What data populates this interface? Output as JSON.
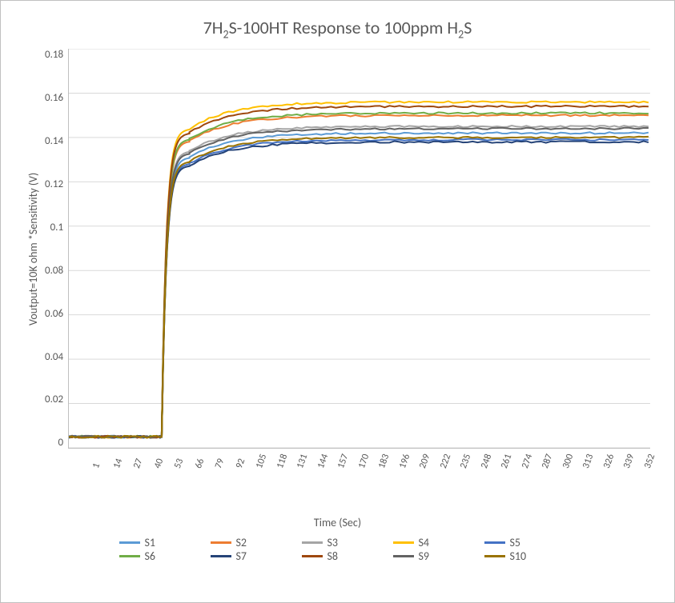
{
  "chart": {
    "type": "line",
    "title_html": "7H<sub>2</sub>S-100HT Response to 100ppm H<sub>2</sub>S",
    "title_color": "#595959",
    "title_fontsize": 22,
    "xlabel": "Time (Sec)",
    "ylabel": "Voutput=10K ohm *Sensitivity (V)",
    "label_fontsize": 14,
    "label_color": "#595959",
    "background_color": "#ffffff",
    "frame_border_color": "#c0c0c0",
    "grid_color": "#d9d9d9",
    "axis_color": "#bfbfbf",
    "tick_color": "#595959",
    "tick_fontsize": 13,
    "xtick_fontsize": 12,
    "xtick_rotation_deg": -70,
    "line_width": 2,
    "ylim": [
      0,
      0.18
    ],
    "yticks": [
      0,
      0.02,
      0.04,
      0.06,
      0.08,
      0.1,
      0.12,
      0.14,
      0.16,
      0.18
    ],
    "xlim": [
      1,
      358
    ],
    "xticks": [
      1,
      14,
      27,
      40,
      53,
      66,
      79,
      92,
      105,
      118,
      131,
      144,
      157,
      170,
      183,
      196,
      209,
      222,
      235,
      248,
      261,
      274,
      287,
      300,
      313,
      326,
      339,
      352
    ],
    "step_x_start": 58,
    "step_x_end": 75,
    "baseline": 0.005,
    "series": [
      {
        "name": "S1",
        "label": "S1",
        "color": "#5b9bd5",
        "plateau": 0.142
      },
      {
        "name": "S2",
        "label": "S2",
        "color": "#ed7d31",
        "plateau": 0.15
      },
      {
        "name": "S3",
        "label": "S3",
        "color": "#a5a5a5",
        "plateau": 0.145
      },
      {
        "name": "S4",
        "label": "S4",
        "color": "#ffc000",
        "plateau": 0.156
      },
      {
        "name": "S5",
        "label": "S5",
        "color": "#4472c4",
        "plateau": 0.139
      },
      {
        "name": "S6",
        "label": "S6",
        "color": "#70ad47",
        "plateau": 0.151
      },
      {
        "name": "S7",
        "label": "S7",
        "color": "#264478",
        "plateau": 0.138
      },
      {
        "name": "S8",
        "label": "S8",
        "color": "#9e480e",
        "plateau": 0.154
      },
      {
        "name": "S9",
        "label": "S9",
        "color": "#636363",
        "plateau": 0.144
      },
      {
        "name": "S10",
        "label": "S10",
        "color": "#997300",
        "plateau": 0.14
      }
    ],
    "legend": {
      "position": "bottom-center",
      "items_per_row": 5,
      "swatch_width": 26,
      "swatch_height": 3,
      "fontsize": 14
    }
  }
}
